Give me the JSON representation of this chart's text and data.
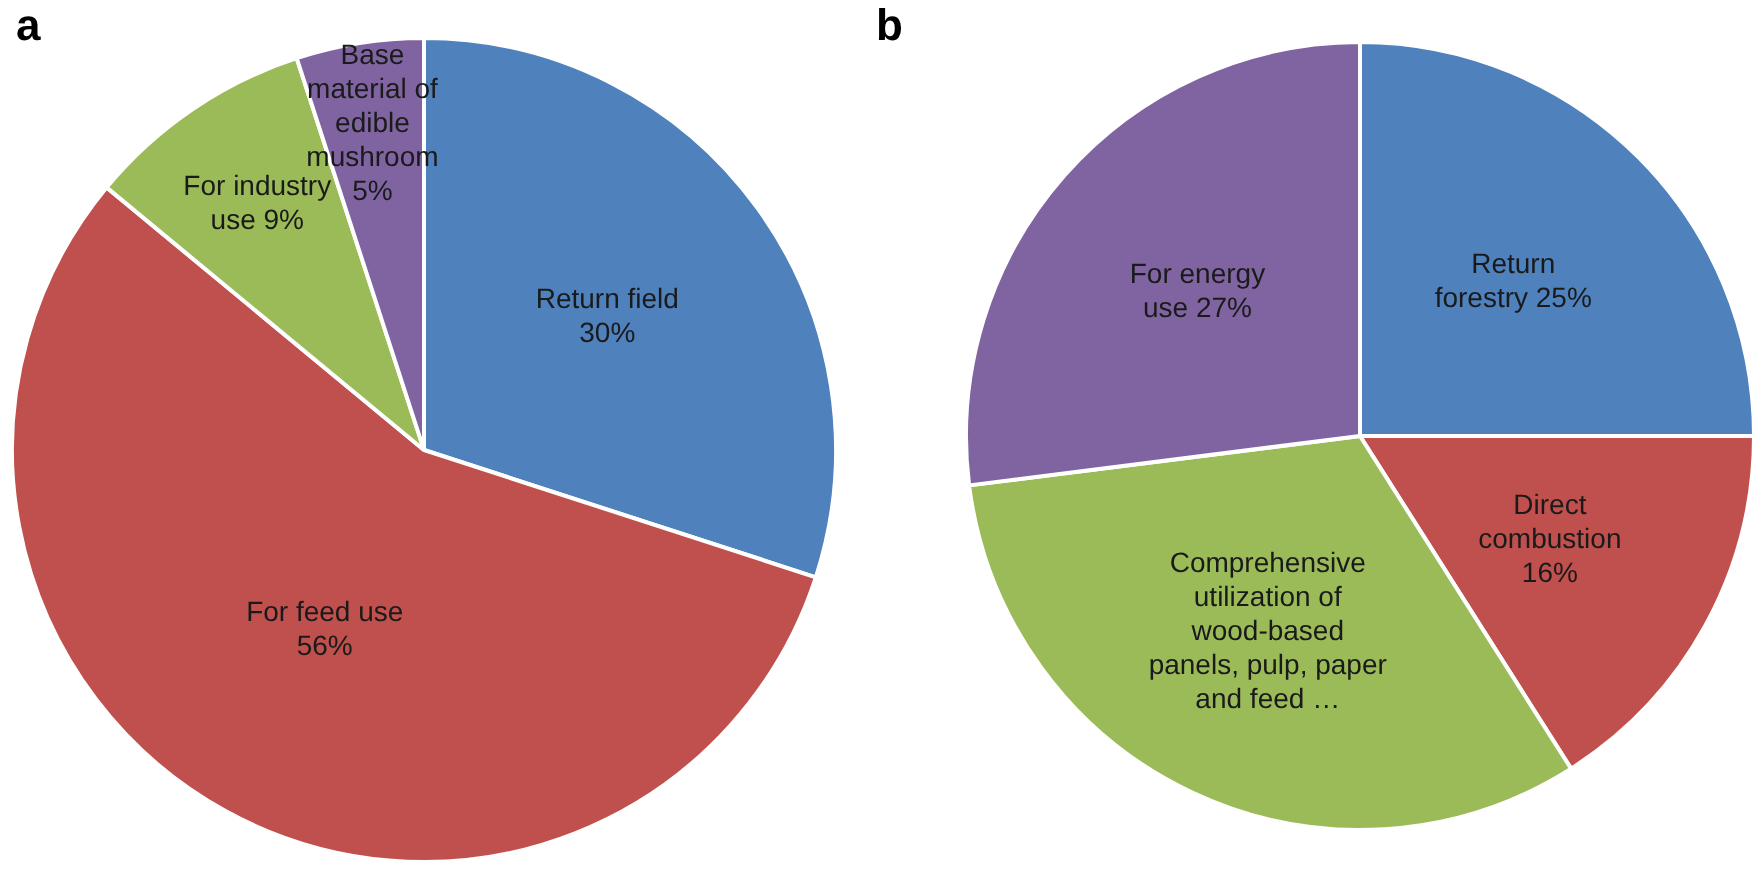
{
  "chart_data": [
    {
      "type": "pie",
      "title": "a",
      "categories": [
        "Return field",
        "For feed use",
        "For industry use",
        "Base material of edible mushroom"
      ],
      "values": [
        30,
        56,
        9,
        5
      ],
      "value_labels": [
        "30%",
        "56%",
        "9%",
        "5%"
      ],
      "colors": [
        "#4f81bd",
        "#c0504d",
        "#9bbb59",
        "#8064a2"
      ],
      "legend": false
    },
    {
      "type": "pie",
      "title": "b",
      "categories": [
        "Return forestry",
        "Direct combustion",
        "Comprehensive utilization of wood-based panels, pulp, paper and feed …",
        "For energy use"
      ],
      "values": [
        25,
        16,
        32,
        27
      ],
      "value_labels": [
        "25%",
        "16%",
        null,
        "27%"
      ],
      "colors": [
        "#4f81bd",
        "#c0504d",
        "#9bbb59",
        "#8064a2"
      ],
      "legend": false
    }
  ]
}
